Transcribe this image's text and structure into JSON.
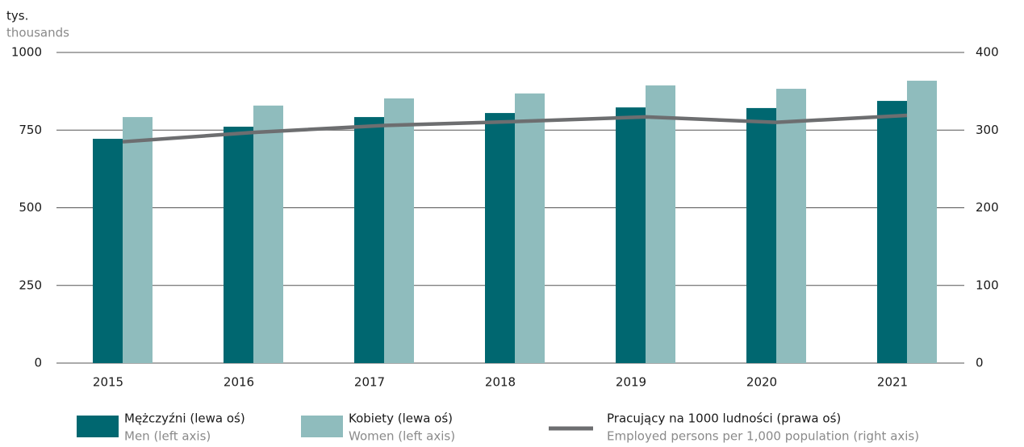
{
  "chart_data": {
    "type": "bar",
    "y_unit": "tys.",
    "y_unit_en": "thousands",
    "categories": [
      "2015",
      "2016",
      "2017",
      "2018",
      "2019",
      "2020",
      "2021"
    ],
    "series": [
      {
        "name": "Mężczyźni (lewa oś)",
        "name_en": "Men (left axis)",
        "color": "#006770",
        "type": "bar",
        "values": [
          722,
          761,
          792,
          805,
          823,
          821,
          844
        ]
      },
      {
        "name": "Kobiety (lewa oś)",
        "name_en": "Women (left axis)",
        "color": "#8fbcbd",
        "type": "bar",
        "values": [
          792,
          829,
          852,
          868,
          894,
          883,
          909
        ]
      },
      {
        "name": "Pracujący na 1000 ludności (prawa oś)",
        "name_en": "Employed persons per 1,000 population (right axis)",
        "color": "#6d6e70",
        "type": "line",
        "axis": "y2",
        "values": [
          285,
          297,
          306,
          311,
          317,
          310,
          319
        ]
      }
    ],
    "ylim": [
      0,
      1000
    ],
    "yticks": [
      0,
      250,
      500,
      750,
      1000
    ],
    "y2lim": [
      0,
      400
    ],
    "y2ticks": [
      0,
      100,
      200,
      300,
      400
    ],
    "grid": true
  }
}
